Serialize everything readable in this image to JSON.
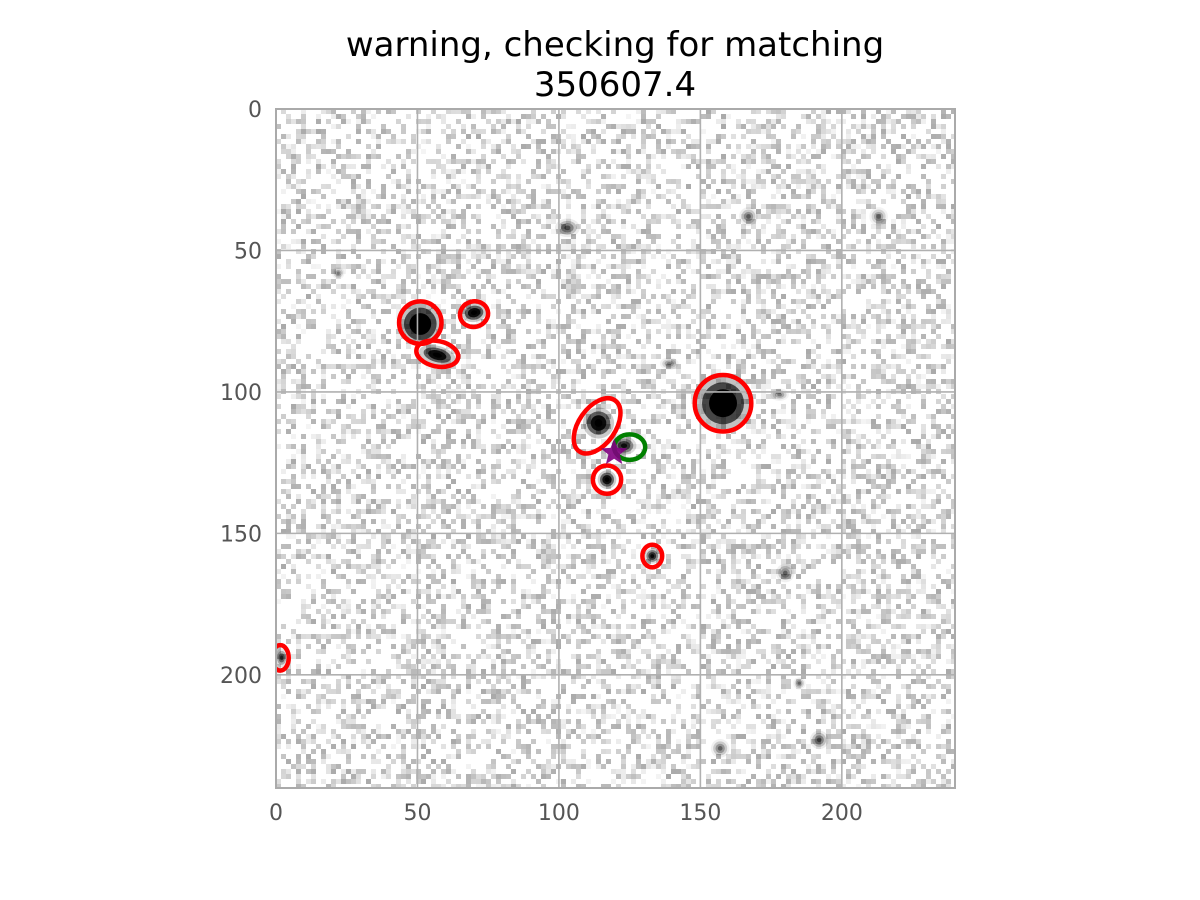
{
  "chart_data": {
    "type": "scatter",
    "title": "warning, checking for matching\n350607.4",
    "title_lines": [
      "warning, checking for matching",
      "350607.4"
    ],
    "xlabel": "",
    "ylabel": "",
    "xlim": [
      0,
      240
    ],
    "ylim": [
      240,
      0
    ],
    "y_axis_inverted": true,
    "grid": true,
    "x_ticks": [
      0,
      50,
      100,
      150,
      200
    ],
    "y_ticks": [
      0,
      50,
      100,
      150,
      200
    ],
    "x_tick_labels": [
      "0",
      "50",
      "100",
      "150",
      "200"
    ],
    "y_tick_labels": [
      "0",
      "50",
      "100",
      "150",
      "200"
    ],
    "background_image": "grayscale noise image with dark point sources",
    "sources": [
      {
        "x": 51,
        "y": 76,
        "rx": 7,
        "ry": 7,
        "angle": 0,
        "intensity": 1.0
      },
      {
        "x": 57,
        "y": 87,
        "rx": 6,
        "ry": 3,
        "angle": 15,
        "intensity": 0.85
      },
      {
        "x": 70,
        "y": 72,
        "rx": 4,
        "ry": 3,
        "angle": -10,
        "intensity": 0.85
      },
      {
        "x": 114,
        "y": 111,
        "rx": 5,
        "ry": 5,
        "angle": 0,
        "intensity": 0.85
      },
      {
        "x": 158,
        "y": 104,
        "rx": 9,
        "ry": 9,
        "angle": 0,
        "intensity": 1.0
      },
      {
        "x": 117,
        "y": 131,
        "rx": 3,
        "ry": 3,
        "angle": 0,
        "intensity": 0.8
      },
      {
        "x": 133,
        "y": 158,
        "rx": 2.5,
        "ry": 2.5,
        "angle": 0,
        "intensity": 0.6
      },
      {
        "x": 123,
        "y": 119,
        "rx": 4,
        "ry": 3,
        "angle": 0,
        "intensity": 0.55
      },
      {
        "x": 103,
        "y": 42,
        "rx": 4,
        "ry": 3,
        "angle": 0,
        "intensity": 0.3
      },
      {
        "x": 167,
        "y": 38,
        "rx": 3,
        "ry": 3,
        "angle": 0,
        "intensity": 0.25
      },
      {
        "x": 180,
        "y": 164,
        "rx": 3,
        "ry": 3,
        "angle": 0,
        "intensity": 0.25
      },
      {
        "x": 192,
        "y": 223,
        "rx": 3,
        "ry": 3,
        "angle": 0,
        "intensity": 0.3
      },
      {
        "x": 157,
        "y": 226,
        "rx": 3,
        "ry": 3,
        "angle": 0,
        "intensity": 0.25
      },
      {
        "x": 185,
        "y": 203,
        "rx": 2,
        "ry": 2,
        "angle": 0,
        "intensity": 0.2
      },
      {
        "x": 22,
        "y": 58,
        "rx": 2,
        "ry": 2,
        "angle": 0,
        "intensity": 0.2
      },
      {
        "x": 139,
        "y": 90,
        "rx": 3,
        "ry": 2,
        "angle": 0,
        "intensity": 0.2
      },
      {
        "x": 178,
        "y": 101,
        "rx": 3,
        "ry": 2,
        "angle": 0,
        "intensity": 0.2
      },
      {
        "x": 213,
        "y": 38,
        "rx": 3,
        "ry": 3,
        "angle": 0,
        "intensity": 0.2
      },
      {
        "x": 2,
        "y": 194,
        "rx": 2,
        "ry": 3,
        "angle": 0,
        "intensity": 0.4
      }
    ],
    "series": [
      {
        "type": "ellipse",
        "color": "#ff0000",
        "points": [
          {
            "x": 51,
            "y": 75.5,
            "w": 15,
            "h": 15,
            "angle": 0
          },
          {
            "x": 57,
            "y": 86.5,
            "w": 15,
            "h": 9,
            "angle": 12
          },
          {
            "x": 70,
            "y": 72.5,
            "w": 10,
            "h": 9,
            "angle": -15
          },
          {
            "x": 113.5,
            "y": 112,
            "w": 22,
            "h": 13,
            "angle": -55
          },
          {
            "x": 158,
            "y": 104,
            "w": 20,
            "h": 20,
            "angle": 0
          },
          {
            "x": 117,
            "y": 131,
            "w": 10,
            "h": 10,
            "angle": 0
          },
          {
            "x": 133,
            "y": 158,
            "w": 7,
            "h": 8,
            "angle": 0
          },
          {
            "x": 1.5,
            "y": 194,
            "w": 6,
            "h": 9,
            "angle": 0
          }
        ]
      },
      {
        "type": "ellipse",
        "color": "#008000",
        "points": [
          {
            "x": 125,
            "y": 119.5,
            "w": 11,
            "h": 9,
            "angle": 0
          }
        ]
      },
      {
        "type": "star-marker",
        "color": "#800080",
        "points": [
          {
            "x": 119.5,
            "y": 121.5
          }
        ]
      }
    ]
  }
}
